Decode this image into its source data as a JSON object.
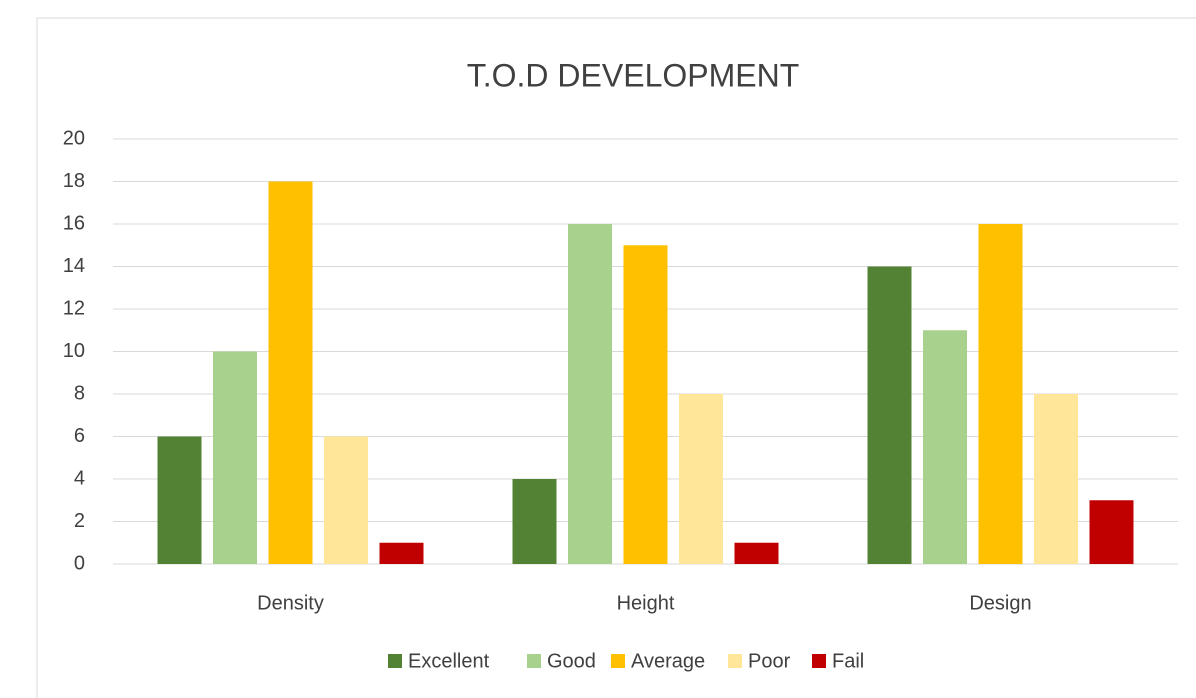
{
  "chart_data": {
    "type": "bar",
    "title": "T.O.D DEVELOPMENT",
    "categories": [
      "Density",
      "Height",
      "Design"
    ],
    "series": [
      {
        "name": "Excellent",
        "color": "#548235",
        "values": [
          6,
          4,
          14
        ]
      },
      {
        "name": "Good",
        "color": "#a9d18e",
        "values": [
          10,
          16,
          11
        ]
      },
      {
        "name": "Average",
        "color": "#ffc000",
        "values": [
          18,
          15,
          16
        ]
      },
      {
        "name": "Poor",
        "color": "#ffe699",
        "values": [
          6,
          8,
          8
        ]
      },
      {
        "name": "Fail",
        "color": "#c00000",
        "values": [
          1,
          1,
          3
        ]
      }
    ],
    "ylim": [
      0,
      20
    ],
    "yticks": [
      0,
      2,
      4,
      6,
      8,
      10,
      12,
      14,
      16,
      18,
      20
    ],
    "grid": true,
    "legend": "bottom"
  }
}
